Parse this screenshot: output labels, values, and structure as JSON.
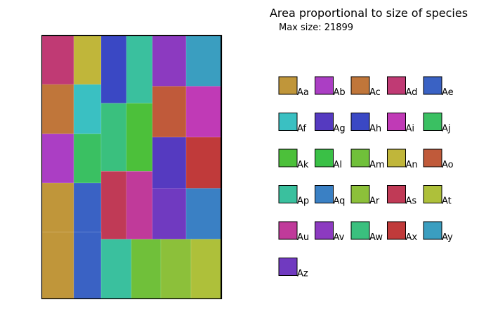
{
  "chart_data": {
    "type": "treemap",
    "title": "Area proportional to size of species",
    "subtitle": "Max size: 21899",
    "max_size": 21899,
    "grid": false,
    "legend_placement": "right",
    "treemap_columns": [
      {
        "items": [
          {
            "name": "Ad",
            "value": 0.25
          },
          {
            "name": "Ac",
            "value": 0.25
          },
          {
            "name": "Ab",
            "value": 0.25
          },
          {
            "name": "Aa",
            "value": 0.25
          }
        ]
      },
      {
        "items": [
          {
            "name": "An",
            "value": 0.25
          },
          {
            "name": "Af",
            "value": 0.25
          },
          {
            "name": "Aj",
            "value": 0.25
          },
          {
            "name": "Ae",
            "value": 0.25
          }
        ]
      },
      {
        "items": [
          {
            "name": "Ah",
            "value": 0.26
          },
          {
            "name": "Aw",
            "value": 0.26
          },
          {
            "name": "As",
            "value": 0.26
          }
        ]
      },
      {
        "items": [
          {
            "name": "Ap",
            "value": 0.26
          },
          {
            "name": "Ak",
            "value": 0.26
          },
          {
            "name": "Au",
            "value": 0.26
          }
        ]
      },
      {
        "items": [
          {
            "name": "Av",
            "value": 0.19
          },
          {
            "name": "Ao",
            "value": 0.19
          },
          {
            "name": "Ag",
            "value": 0.19
          },
          {
            "name": "Az",
            "value": 0.19
          }
        ]
      },
      {
        "items": [
          {
            "name": "Ay",
            "value": 0.19
          },
          {
            "name": "Ai",
            "value": 0.19
          },
          {
            "name": "Ax",
            "value": 0.19
          },
          {
            "name": "Aq",
            "value": 0.19
          }
        ]
      }
    ],
    "bottom_row": {
      "items": [
        {
          "name": "Ap",
          "value": 0.19
        },
        {
          "name": "Am",
          "value": 0.19
        },
        {
          "name": "Ar",
          "value": 0.19
        },
        {
          "name": "At",
          "value": 0.19
        }
      ]
    },
    "legend": [
      {
        "name": "Aa",
        "color": "#c0963a"
      },
      {
        "name": "Ab",
        "color": "#ab3ec4"
      },
      {
        "name": "Ac",
        "color": "#c0763a"
      },
      {
        "name": "Ad",
        "color": "#c03a74"
      },
      {
        "name": "Ae",
        "color": "#3a62c4"
      },
      {
        "name": "Af",
        "color": "#3ac0c2"
      },
      {
        "name": "Ag",
        "color": "#553ac0"
      },
      {
        "name": "Ah",
        "color": "#3a48c4"
      },
      {
        "name": "Ai",
        "color": "#c03ab6"
      },
      {
        "name": "Aj",
        "color": "#3ac062"
      },
      {
        "name": "Ak",
        "color": "#4cc03a"
      },
      {
        "name": "Al",
        "color": "#3ac046"
      },
      {
        "name": "Am",
        "color": "#70c03a"
      },
      {
        "name": "An",
        "color": "#c0b63a"
      },
      {
        "name": "Ao",
        "color": "#c05a3a"
      },
      {
        "name": "Ap",
        "color": "#3ac09e"
      },
      {
        "name": "Aq",
        "color": "#3a80c4"
      },
      {
        "name": "Ar",
        "color": "#8cc03a"
      },
      {
        "name": "As",
        "color": "#c03a56"
      },
      {
        "name": "At",
        "color": "#aec03a"
      },
      {
        "name": "Au",
        "color": "#c03a9a"
      },
      {
        "name": "Av",
        "color": "#8c3ac0"
      },
      {
        "name": "Aw",
        "color": "#3ac07e"
      },
      {
        "name": "Ax",
        "color": "#c03a3a"
      },
      {
        "name": "Ay",
        "color": "#3a9ec0"
      },
      {
        "name": "Az",
        "color": "#703ac0"
      }
    ]
  }
}
